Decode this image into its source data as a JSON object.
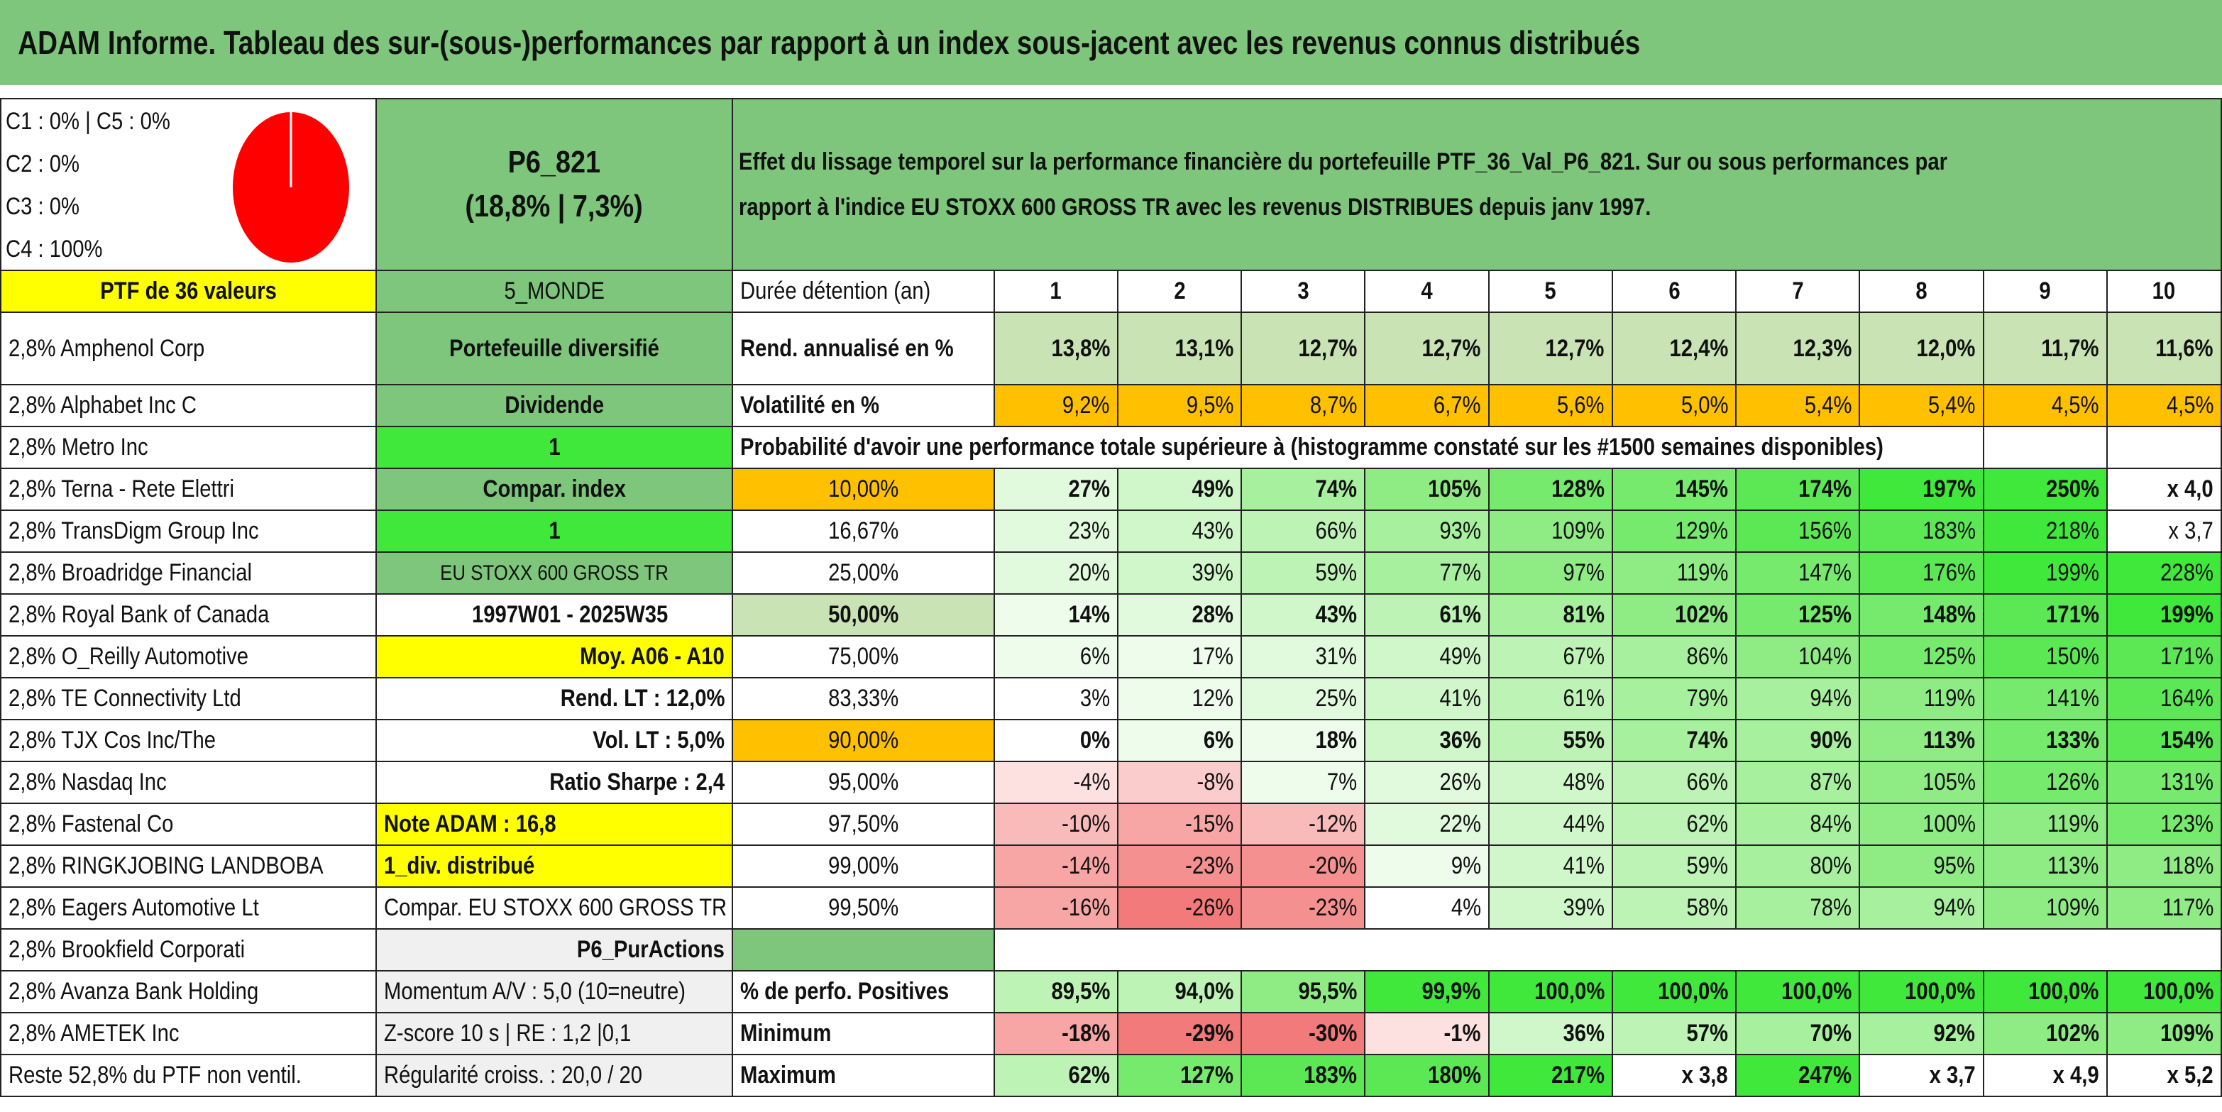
{
  "title": "ADAM Informe. Tableau des sur-(sous-)performances par rapport à un index sous-jacent avec les revenus connus distribués",
  "classes": [
    "C1 : 0% | C5 : 0%",
    "C2 : 0%",
    "C3 : 0%",
    "C4 : 100%"
  ],
  "pie": {
    "segments": [
      {
        "name": "C4",
        "value": 100,
        "color": "#ff0000"
      }
    ]
  },
  "portfolio": {
    "code": "P6_821",
    "stats": "(18,8% | 7,3%)"
  },
  "description_line1": "Effet du lissage temporel sur la performance financière du portefeuille PTF_36_Val_P6_821. Sur ou sous performances par",
  "description_line2": "rapport à l'indice EU STOXX 600 GROSS TR avec les revenus DISTRIBUES depuis janv 1997.",
  "ptf_label": "PTF de 36 valeurs",
  "holdings": [
    "2,8% Amphenol Corp",
    "2,8% Alphabet Inc C",
    "2,8% Metro Inc",
    "2,8% Terna - Rete Elettri",
    "2,8% TransDigm Group Inc",
    "2,8% Broadridge Financial",
    "2,8% Royal Bank of Canada",
    "2,8% O_Reilly Automotive",
    "2,8% TE Connectivity Ltd",
    "2,8% TJX Cos Inc/The",
    "2,8% Nasdaq Inc",
    "2,8% Fastenal Co",
    "2,8% RINGKJOBING LANDBOBA",
    "2,8% Eagers Automotive Lt",
    "2,8% Brookfield Corporati",
    "2,8% Avanza Bank Holding",
    "2,8% AMETEK Inc",
    "Reste 52,8% du PTF non ventil."
  ],
  "info": [
    "5_MONDE",
    "Portefeuille diversifié",
    "Dividende",
    "1",
    "Compar. index",
    "1",
    "EU STOXX 600 GROSS TR",
    "1997W01 - 2025W35",
    "Moy. A06 - A10",
    "Rend. LT : 12,0%",
    "Vol. LT : 5,0%",
    "Ratio Sharpe : 2,4",
    "Note ADAM : 16,8",
    "1_div. distribué",
    "Compar. EU STOXX 600 GROSS TR",
    "P6_PurActions",
    "Momentum A/V : 5,0 (10=neutre)",
    "Z-score 10 s | RE : 1,2 |0,1",
    "Régularité croiss. : 20,0 / 20"
  ],
  "duration_label": "Durée détention (an)",
  "years": [
    "1",
    "2",
    "3",
    "4",
    "5",
    "6",
    "7",
    "8",
    "9",
    "10"
  ],
  "rend_label": "Rend. annualisé en %",
  "rend": [
    "13,8%",
    "13,1%",
    "12,7%",
    "12,7%",
    "12,7%",
    "12,4%",
    "12,3%",
    "12,0%",
    "11,7%",
    "11,6%"
  ],
  "vol_label": "Volatilité en %",
  "vol": [
    "9,2%",
    "9,5%",
    "8,7%",
    "6,7%",
    "5,6%",
    "5,0%",
    "5,4%",
    "5,4%",
    "4,5%",
    "4,5%"
  ],
  "prob_title": "Probabilité d'avoir une performance totale supérieure à (histogramme constaté sur les #1500 semaines disponibles)",
  "quantiles": [
    {
      "p": "10,00%",
      "v": [
        "27%",
        "49%",
        "74%",
        "105%",
        "128%",
        "145%",
        "174%",
        "197%",
        "250%",
        "x 4,0"
      ]
    },
    {
      "p": "16,67%",
      "v": [
        "23%",
        "43%",
        "66%",
        "93%",
        "109%",
        "129%",
        "156%",
        "183%",
        "218%",
        "x 3,7"
      ]
    },
    {
      "p": "25,00%",
      "v": [
        "20%",
        "39%",
        "59%",
        "77%",
        "97%",
        "119%",
        "147%",
        "176%",
        "199%",
        "228%"
      ]
    },
    {
      "p": "50,00%",
      "v": [
        "14%",
        "28%",
        "43%",
        "61%",
        "81%",
        "102%",
        "125%",
        "148%",
        "171%",
        "199%"
      ]
    },
    {
      "p": "75,00%",
      "v": [
        "6%",
        "17%",
        "31%",
        "49%",
        "67%",
        "86%",
        "104%",
        "125%",
        "150%",
        "171%"
      ]
    },
    {
      "p": "83,33%",
      "v": [
        "3%",
        "12%",
        "25%",
        "41%",
        "61%",
        "79%",
        "94%",
        "119%",
        "141%",
        "164%"
      ]
    },
    {
      "p": "90,00%",
      "v": [
        "0%",
        "6%",
        "18%",
        "36%",
        "55%",
        "74%",
        "90%",
        "113%",
        "133%",
        "154%"
      ]
    },
    {
      "p": "95,00%",
      "v": [
        "-4%",
        "-8%",
        "7%",
        "26%",
        "48%",
        "66%",
        "87%",
        "105%",
        "126%",
        "131%"
      ]
    },
    {
      "p": "97,50%",
      "v": [
        "-10%",
        "-15%",
        "-12%",
        "22%",
        "44%",
        "62%",
        "84%",
        "100%",
        "119%",
        "123%"
      ]
    },
    {
      "p": "99,00%",
      "v": [
        "-14%",
        "-23%",
        "-20%",
        "9%",
        "41%",
        "59%",
        "80%",
        "95%",
        "113%",
        "118%"
      ]
    },
    {
      "p": "99,50%",
      "v": [
        "-16%",
        "-26%",
        "-23%",
        "4%",
        "39%",
        "58%",
        "78%",
        "94%",
        "109%",
        "117%"
      ]
    }
  ],
  "pos_label": "% de perfo. Positives",
  "pos": [
    "89,5%",
    "94,0%",
    "95,5%",
    "99,9%",
    "100,0%",
    "100,0%",
    "100,0%",
    "100,0%",
    "100,0%",
    "100,0%"
  ],
  "min_label": "Minimum",
  "min": [
    "-18%",
    "-29%",
    "-30%",
    "-1%",
    "36%",
    "57%",
    "70%",
    "92%",
    "102%",
    "109%"
  ],
  "max_label": "Maximum",
  "max": [
    "62%",
    "127%",
    "183%",
    "180%",
    "217%",
    "x 3,8",
    "247%",
    "x 3,7",
    "x 4,9",
    "x 5,2"
  ],
  "colors": {
    "green_mid": "#7ec67b",
    "bright_green": "#3fe83a",
    "yellow": "#ffff00",
    "orange": "#ffc000",
    "red_text": "#e8101e"
  }
}
